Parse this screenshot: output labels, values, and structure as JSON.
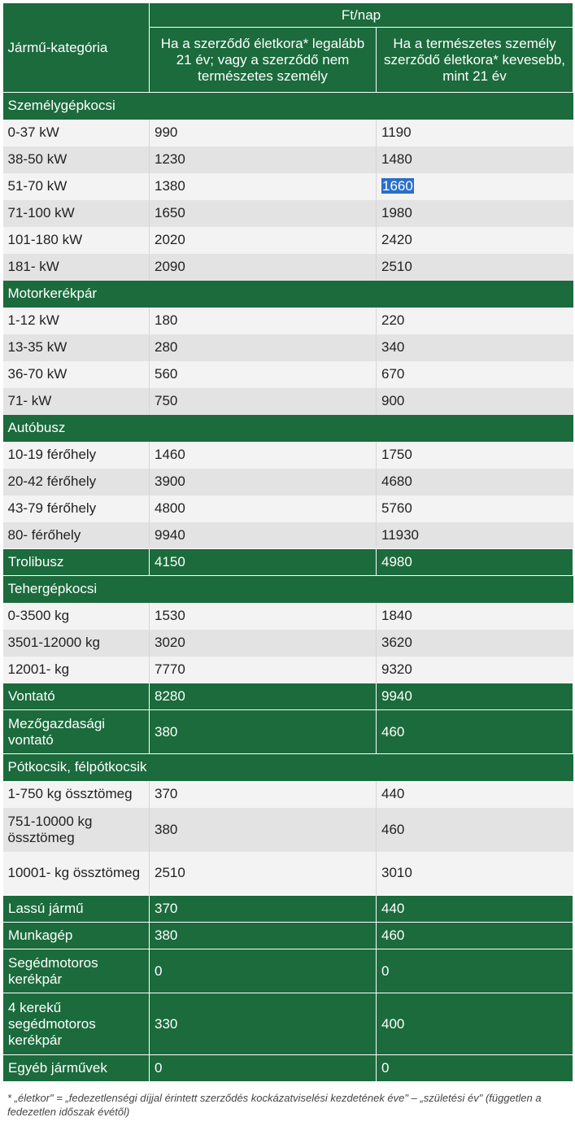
{
  "header": {
    "category": "Jármű-kategória",
    "unit": "Ft/nap",
    "col_adult": "Ha a szerződő életkora* legalább 21 év; vagy a szerződő nem természetes személy",
    "col_young": "Ha a természetes személy szerződő életkora* kevesebb, mint 21 év"
  },
  "rows": [
    {
      "type": "section",
      "label": "Személygépkocsi"
    },
    {
      "type": "row",
      "label": "0-37 kW",
      "adult": "990",
      "young": "1190"
    },
    {
      "type": "row",
      "label": "38-50 kW",
      "adult": "1230",
      "young": "1480"
    },
    {
      "type": "row",
      "label": "51-70 kW",
      "adult": "1380",
      "young": "1660",
      "selected": true
    },
    {
      "type": "row",
      "label": "71-100 kW",
      "adult": "1650",
      "young": "1980"
    },
    {
      "type": "row",
      "label": "101-180 kW",
      "adult": "2020",
      "young": "2420"
    },
    {
      "type": "row",
      "label": "181- kW",
      "adult": "2090",
      "young": "2510"
    },
    {
      "type": "section",
      "label": "Motorkerékpár"
    },
    {
      "type": "row",
      "label": "1-12 kW",
      "adult": "180",
      "young": "220"
    },
    {
      "type": "row",
      "label": "13-35 kW",
      "adult": "280",
      "young": "340"
    },
    {
      "type": "row",
      "label": "36-70 kW",
      "adult": "560",
      "young": "670"
    },
    {
      "type": "row",
      "label": "71- kW",
      "adult": "750",
      "young": "900"
    },
    {
      "type": "section",
      "label": "Autóbusz"
    },
    {
      "type": "row",
      "label": "10-19 férőhely",
      "adult": "1460",
      "young": "1750"
    },
    {
      "type": "row",
      "label": "20-42 férőhely",
      "adult": "3900",
      "young": "4680"
    },
    {
      "type": "row",
      "label": "43-79 férőhely",
      "adult": "4800",
      "young": "5760"
    },
    {
      "type": "row",
      "label": "80- férőhely",
      "adult": "9940",
      "young": "11930"
    },
    {
      "type": "green",
      "label": "Trolibusz",
      "adult": "4150",
      "young": "4980"
    },
    {
      "type": "section",
      "label": "Tehergépkocsi"
    },
    {
      "type": "row",
      "label": "0-3500 kg",
      "adult": "1530",
      "young": "1840"
    },
    {
      "type": "row",
      "label": "3501-12000 kg",
      "adult": "3020",
      "young": "3620"
    },
    {
      "type": "row",
      "label": "12001- kg",
      "adult": "7770",
      "young": "9320"
    },
    {
      "type": "green",
      "label": "Vontató",
      "adult": "8280",
      "young": "9940"
    },
    {
      "type": "green",
      "label": "Mezőgazdasági vontató",
      "adult": "380",
      "young": "460",
      "lines": 2
    },
    {
      "type": "section",
      "label": "Pótkocsik, félpótkocsik"
    },
    {
      "type": "row",
      "label": "1-750 kg össztömeg",
      "adult": "370",
      "young": "440"
    },
    {
      "type": "row",
      "label": "751-10000 kg össztömeg",
      "adult": "380",
      "young": "460",
      "lines": 2
    },
    {
      "type": "row",
      "label": "10001- kg össztömeg",
      "adult": "2510",
      "young": "3010",
      "lines": 2
    },
    {
      "type": "green",
      "label": "Lassú jármű",
      "adult": "370",
      "young": "440"
    },
    {
      "type": "green",
      "label": "Munkagép",
      "adult": "380",
      "young": "460"
    },
    {
      "type": "green",
      "label": "Segédmotoros kerékpár",
      "adult": "0",
      "young": "0",
      "lines": 2
    },
    {
      "type": "green",
      "label": "4 kerekű segédmotoros kerékpár",
      "adult": "330",
      "young": "400",
      "lines": 3
    },
    {
      "type": "green",
      "label": "Egyéb járművek",
      "adult": "0",
      "young": "0"
    }
  ],
  "footnote": "* „életkor\" = „fedezetlenségi díjjal érintett szerződés kockázatviselési kezdetének éve\" – „születési év\" (független a fedezetlen időszak évétől)",
  "colors": {
    "green": "#1b6b3c",
    "row_light": "#f3f3f3",
    "row_dark": "#e3e3e3",
    "selection": "#2a6ec9"
  }
}
